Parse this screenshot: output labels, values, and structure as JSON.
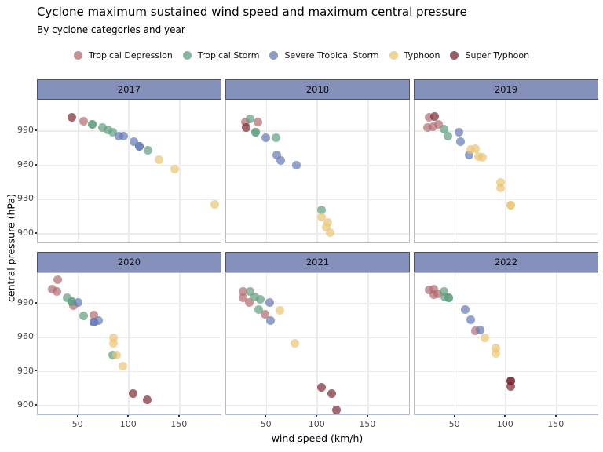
{
  "header": {
    "title": "Cyclone maximum sustained wind speed and maximum central pressure",
    "subtitle": "By cyclone categories and year"
  },
  "legend": {
    "items": [
      {
        "key": "td",
        "label": "Tropical Depression",
        "color": "#b26b6f"
      },
      {
        "key": "ts",
        "label": "Tropical Storm",
        "color": "#5f9e7f"
      },
      {
        "key": "sts",
        "label": "Severe Tropical Storm",
        "color": "#6379b5"
      },
      {
        "key": "ty",
        "label": "Typhoon",
        "color": "#eac572"
      },
      {
        "key": "st",
        "label": "Super Typhoon",
        "color": "#7a2830"
      }
    ],
    "point_alpha": 0.7
  },
  "colors": {
    "strip_background": "#8691bb",
    "strip_border": "#44517f",
    "panel_border": "#b3bbd8",
    "gridline": "#ececec",
    "tick_label": "#4a4a4a"
  },
  "chart_data": {
    "type": "scatter",
    "title": "Cyclone maximum sustained wind speed and maximum central pressure",
    "subtitle": "By cyclone categories and year",
    "xlabel": "wind speed (km/h)",
    "ylabel": "central pressure (hPa)",
    "facet_by": "year",
    "legend_position": "top",
    "grid": "major-only",
    "xlim": [
      10,
      192
    ],
    "ylim": [
      891,
      1017
    ],
    "x_ticks": [
      50,
      100,
      150
    ],
    "y_ticks": [
      900,
      930,
      960,
      990
    ],
    "facets": [
      {
        "year": "2017",
        "points": {
          "td": [
            [
              55,
              999
            ]
          ],
          "ts": [
            [
              64,
              996
            ],
            [
              64,
              996
            ],
            [
              74,
              993
            ],
            [
              79,
              991
            ],
            [
              84,
              989
            ],
            [
              119,
              973
            ]
          ],
          "sts": [
            [
              90,
              986
            ],
            [
              95,
              986
            ],
            [
              105,
              981
            ],
            [
              110,
              977
            ],
            [
              110,
              977
            ]
          ],
          "ty": [
            [
              130,
              965
            ],
            [
              145,
              957
            ],
            [
              185,
              926
            ]
          ],
          "st": [
            [
              44,
              1002
            ]
          ]
        }
      },
      {
        "year": "2018",
        "points": {
          "td": [
            [
              29,
              998
            ],
            [
              41,
              998
            ]
          ],
          "ts": [
            [
              34,
              1001
            ],
            [
              39,
              989
            ],
            [
              39,
              989
            ],
            [
              59,
              984
            ],
            [
              104,
              921
            ]
          ],
          "sts": [
            [
              49,
              984
            ],
            [
              60,
              969
            ],
            [
              64,
              964
            ],
            [
              79,
              960
            ]
          ],
          "ty": [
            [
              104,
              915
            ],
            [
              110,
              910
            ],
            [
              109,
              906
            ],
            [
              113,
              901
            ]
          ],
          "st": [
            [
              30,
              993
            ]
          ]
        }
      },
      {
        "year": "2019",
        "points": {
          "td": [
            [
              24,
              1002
            ],
            [
              23,
              993
            ],
            [
              28,
              994
            ],
            [
              34,
              996
            ]
          ],
          "ts": [
            [
              39,
              992
            ],
            [
              43,
              986
            ]
          ],
          "sts": [
            [
              54,
              989
            ],
            [
              55,
              981
            ],
            [
              64,
              969
            ]
          ],
          "ty": [
            [
              65,
              974
            ],
            [
              70,
              975
            ],
            [
              73,
              968
            ],
            [
              77,
              967
            ],
            [
              95,
              945
            ],
            [
              95,
              940
            ],
            [
              105,
              925
            ],
            [
              105,
              925
            ]
          ],
          "st": [
            [
              30,
              1003
            ]
          ]
        }
      },
      {
        "year": "2020",
        "points": {
          "td": [
            [
              30,
              1011
            ],
            [
              24,
              1003
            ],
            [
              29,
              1001
            ],
            [
              45,
              988
            ],
            [
              65,
              980
            ]
          ],
          "ts": [
            [
              39,
              995
            ],
            [
              44,
              992
            ],
            [
              44,
              992
            ],
            [
              55,
              979
            ],
            [
              84,
              945
            ]
          ],
          "sts": [
            [
              50,
              991
            ],
            [
              65,
              974
            ],
            [
              65,
              974
            ],
            [
              70,
              975
            ]
          ],
          "ty": [
            [
              85,
              960
            ],
            [
              85,
              955
            ],
            [
              88,
              945
            ],
            [
              94,
              935
            ]
          ],
          "st": [
            [
              104,
              911
            ],
            [
              118,
              905
            ]
          ]
        }
      },
      {
        "year": "2021",
        "points": {
          "td": [
            [
              27,
              1001
            ],
            [
              27,
              995
            ],
            [
              33,
              991
            ],
            [
              48,
              981
            ]
          ],
          "ts": [
            [
              34,
              1001
            ],
            [
              38,
              996
            ],
            [
              44,
              994
            ],
            [
              42,
              985
            ]
          ],
          "sts": [
            [
              53,
              991
            ],
            [
              54,
              975
            ]
          ],
          "ty": [
            [
              63,
              984
            ],
            [
              78,
              955
            ]
          ],
          "st": [
            [
              104,
              916
            ],
            [
              114,
              911
            ],
            [
              119,
              896
            ]
          ]
        }
      },
      {
        "year": "2022",
        "points": {
          "td": [
            [
              24,
              1002
            ],
            [
              29,
              1003
            ],
            [
              29,
              998
            ],
            [
              33,
              999
            ],
            [
              70,
              966
            ]
          ],
          "ts": [
            [
              39,
              1001
            ],
            [
              40,
              996
            ],
            [
              44,
              995
            ],
            [
              44,
              995
            ]
          ],
          "sts": [
            [
              60,
              985
            ],
            [
              65,
              976
            ],
            [
              75,
              967
            ]
          ],
          "ty": [
            [
              79,
              960
            ],
            [
              90,
              951
            ],
            [
              90,
              946
            ]
          ],
          "st": [
            [
              105,
              922
            ],
            [
              105,
              922
            ],
            [
              105,
              917
            ]
          ]
        }
      }
    ]
  }
}
